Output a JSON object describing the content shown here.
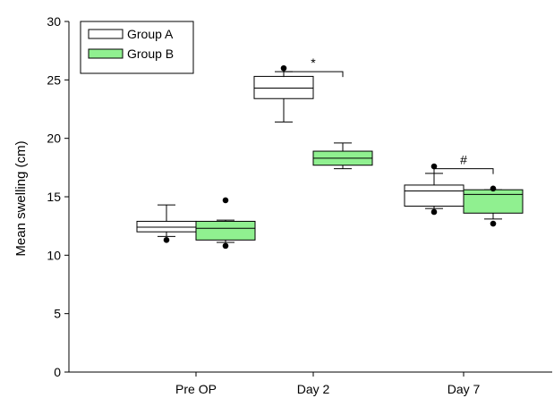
{
  "chart_data": {
    "type": "box",
    "title": "",
    "xlabel": "",
    "ylabel": "Mean swelling (cm)",
    "ylim": [
      0,
      30
    ],
    "yticks": [
      "0",
      "5",
      "10",
      "15",
      "20",
      "25",
      "30"
    ],
    "categories": [
      "Pre OP",
      "Day 2",
      "Day 7"
    ],
    "legend_position": "top-left",
    "series": [
      {
        "name": "Group A",
        "color": "#ffffff",
        "boxes": [
          {
            "category": "Pre OP",
            "whisker_low": 11.6,
            "q1": 12.0,
            "median": 12.4,
            "q3": 12.9,
            "whisker_high": 14.3,
            "outliers": [
              11.3
            ]
          },
          {
            "category": "Day 2",
            "whisker_low": 21.4,
            "q1": 23.4,
            "median": 24.3,
            "q3": 25.3,
            "whisker_high": 25.7,
            "outliers": [
              26.0
            ]
          },
          {
            "category": "Day 7",
            "whisker_low": 14.0,
            "q1": 14.2,
            "median": 15.5,
            "q3": 16.0,
            "whisker_high": 17.0,
            "outliers": [
              17.6,
              13.7
            ]
          }
        ]
      },
      {
        "name": "Group B",
        "color": "#90f090",
        "boxes": [
          {
            "category": "Pre OP",
            "whisker_low": 11.1,
            "q1": 11.3,
            "median": 12.3,
            "q3": 12.9,
            "whisker_high": 13.0,
            "outliers": [
              14.7,
              10.8
            ]
          },
          {
            "category": "Day 2",
            "whisker_low": 17.4,
            "q1": 17.7,
            "median": 18.3,
            "q3": 18.9,
            "whisker_high": 19.6,
            "outliers": []
          },
          {
            "category": "Day 7",
            "whisker_low": 13.1,
            "q1": 13.6,
            "median": 15.2,
            "q3": 15.6,
            "whisker_high": 15.6,
            "outliers": [
              15.7,
              12.7
            ]
          }
        ]
      }
    ],
    "annotations": [
      {
        "category": "Day 2",
        "text": "*",
        "y": 25.7
      },
      {
        "category": "Day 7",
        "text": "#",
        "y": 17.4
      }
    ]
  }
}
